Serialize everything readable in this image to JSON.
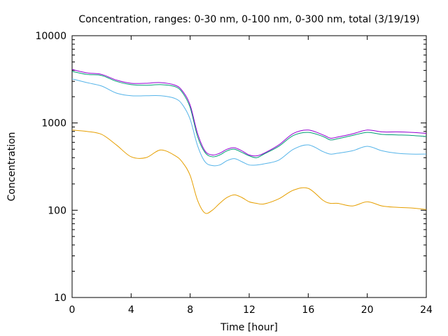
{
  "chart_data": {
    "type": "line",
    "title": "Concentration, ranges: 0-30 nm, 0-100 nm, 0-300 nm, total (3/19/19)",
    "xlabel": "Time [hour]",
    "ylabel": "Concentration",
    "xlim": [
      0,
      24
    ],
    "ylim": [
      10,
      10000
    ],
    "yscale": "log",
    "grid": false,
    "x_ticks": [
      "0",
      "4",
      "8",
      "12",
      "16",
      "20",
      "24"
    ],
    "y_ticks": [
      "10",
      "100",
      "1000",
      "10000"
    ],
    "x": [
      0,
      1,
      2,
      3,
      4,
      5,
      6,
      7,
      7.5,
      8,
      8.5,
      9,
      9.5,
      10,
      10.5,
      11,
      11.5,
      12,
      12.5,
      13,
      14,
      15,
      16,
      17,
      17.5,
      18,
      19,
      20,
      21,
      22,
      23,
      24
    ],
    "series": [
      {
        "color": "#e69f00",
        "values": [
          830,
          800,
          740,
          560,
          410,
          400,
          490,
          420,
          350,
          250,
          130,
          93,
          100,
          120,
          140,
          150,
          140,
          125,
          120,
          118,
          135,
          170,
          178,
          130,
          120,
          120,
          112,
          125,
          112,
          108,
          106,
          102
        ]
      },
      {
        "color": "#56b4e9",
        "values": [
          3200,
          2900,
          2650,
          2200,
          2050,
          2050,
          2050,
          1900,
          1600,
          1100,
          550,
          360,
          325,
          330,
          370,
          390,
          360,
          330,
          330,
          340,
          375,
          500,
          560,
          470,
          440,
          450,
          480,
          540,
          480,
          450,
          440,
          440
        ]
      },
      {
        "color": "#009e73",
        "values": [
          3900,
          3600,
          3500,
          3000,
          2750,
          2700,
          2750,
          2600,
          2200,
          1500,
          700,
          460,
          410,
          430,
          480,
          500,
          460,
          420,
          400,
          440,
          540,
          720,
          780,
          700,
          640,
          660,
          720,
          780,
          740,
          730,
          720,
          700
        ]
      },
      {
        "color": "#9400d3",
        "values": [
          4100,
          3750,
          3600,
          3100,
          2850,
          2850,
          2900,
          2700,
          2300,
          1600,
          760,
          480,
          430,
          450,
          500,
          520,
          480,
          430,
          420,
          450,
          560,
          760,
          830,
          730,
          670,
          690,
          750,
          830,
          790,
          790,
          780,
          760
        ]
      }
    ]
  }
}
